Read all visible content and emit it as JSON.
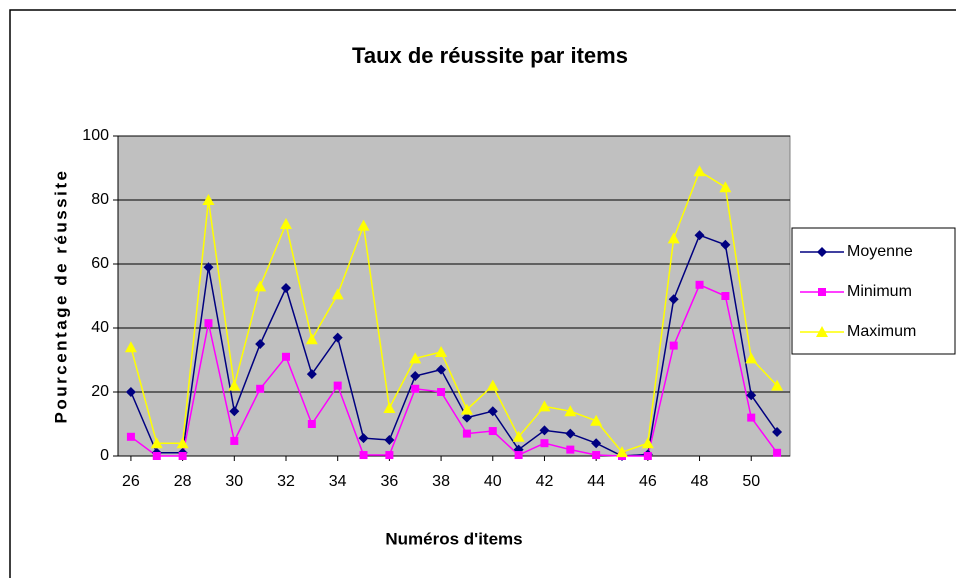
{
  "chart_data": {
    "type": "line",
    "title": "Taux de réussite par items",
    "xlabel": "Numéros d'items",
    "ylabel": "Pourcentage de réussite",
    "x": [
      26,
      27,
      28,
      29,
      30,
      31,
      32,
      33,
      34,
      35,
      36,
      37,
      38,
      39,
      40,
      41,
      42,
      43,
      44,
      45,
      46,
      47,
      48,
      49,
      50,
      51
    ],
    "series": [
      {
        "name": "Moyenne",
        "color": "#000080",
        "marker": "diamond",
        "values": [
          20,
          1,
          1,
          59,
          14,
          35,
          52.5,
          25.6,
          37,
          5.6,
          5,
          25,
          27,
          12,
          14,
          2,
          8,
          7,
          4,
          0,
          0.5,
          49,
          69,
          66,
          19,
          7.5
        ]
      },
      {
        "name": "Minimum",
        "color": "#ff00ff",
        "marker": "square",
        "values": [
          6,
          0,
          0,
          41.5,
          4.7,
          21,
          31,
          10,
          22,
          0.3,
          0.3,
          21,
          20,
          7,
          7.8,
          0.3,
          4,
          2,
          0.3,
          0,
          0,
          34.5,
          53.5,
          50,
          12,
          1
        ]
      },
      {
        "name": "Maximum",
        "color": "#ffff00",
        "marker": "triangle",
        "values": [
          34,
          4,
          4,
          80,
          22,
          53,
          72.5,
          36.5,
          50.5,
          72,
          15,
          30.5,
          32.5,
          14.5,
          22,
          6,
          15.5,
          14,
          11,
          1.2,
          4,
          68,
          89,
          84,
          30.5,
          22
        ]
      }
    ],
    "xlim": [
      25.5,
      51.5
    ],
    "xticks": [
      26,
      28,
      30,
      32,
      34,
      36,
      38,
      40,
      42,
      44,
      46,
      48,
      50
    ],
    "ylim": [
      0,
      100
    ],
    "yticks": [
      0,
      20,
      40,
      60,
      80,
      100
    ],
    "grid": true,
    "legend": "right",
    "plot_background": "#c0c0c0"
  }
}
